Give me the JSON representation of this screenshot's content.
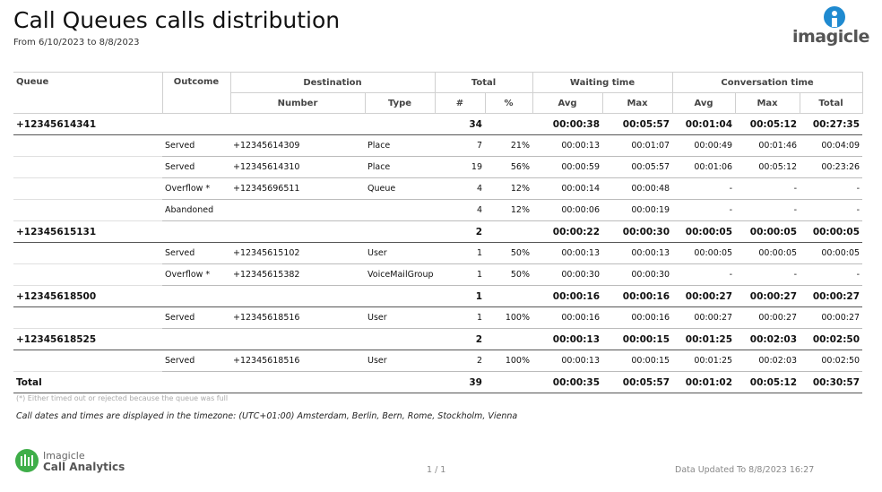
{
  "header": {
    "title": "Call Queues calls distribution",
    "subtitle": "From 6/10/2023 to 8/8/2023",
    "logo": "imagicle"
  },
  "table": {
    "group_headers": [
      "Queue",
      "Outcome",
      "Destination",
      "Total",
      "Waiting time",
      "Conversation time"
    ],
    "sub_headers": [
      "Number",
      "Type",
      "#",
      "%",
      "Avg",
      "Max",
      "Avg",
      "Max",
      "Total"
    ],
    "rows": [
      [
        "+12345614341",
        null,
        null,
        null,
        34,
        null,
        "00:00:38",
        "00:05:57",
        "00:01:04",
        "00:05:12",
        "00:27:35"
      ],
      [
        null,
        "Served",
        "+12345614309",
        "Place",
        7,
        "21%",
        "00:00:13",
        "00:01:07",
        "00:00:49",
        "00:01:46",
        "00:04:09"
      ],
      [
        null,
        "Served",
        "+12345614310",
        "Place",
        19,
        "56%",
        "00:00:59",
        "00:05:57",
        "00:01:06",
        "00:05:12",
        "00:23:26"
      ],
      [
        null,
        "Overflow *",
        "+12345696511",
        "Queue",
        4,
        "12%",
        "00:00:14",
        "00:00:48",
        "-",
        "-",
        "-"
      ],
      [
        null,
        "Abandoned",
        null,
        null,
        4,
        "12%",
        "00:00:06",
        "00:00:19",
        "-",
        "-",
        "-"
      ],
      [
        "+12345615131",
        null,
        null,
        null,
        2,
        null,
        "00:00:22",
        "00:00:30",
        "00:00:05",
        "00:00:05",
        "00:00:05"
      ],
      [
        null,
        "Served",
        "+12345615102",
        "User",
        1,
        "50%",
        "00:00:13",
        "00:00:13",
        "00:00:05",
        "00:00:05",
        "00:00:05"
      ],
      [
        null,
        "Overflow *",
        "+12345615382",
        "VoiceMailGroup",
        1,
        "50%",
        "00:00:30",
        "00:00:30",
        "-",
        "-",
        "-"
      ],
      [
        "+12345618500",
        null,
        null,
        null,
        1,
        null,
        "00:00:16",
        "00:00:16",
        "00:00:27",
        "00:00:27",
        "00:00:27"
      ],
      [
        null,
        "Served",
        "+12345618516",
        "User",
        1,
        "100%",
        "00:00:16",
        "00:00:16",
        "00:00:27",
        "00:00:27",
        "00:00:27"
      ],
      [
        "+12345618525",
        null,
        null,
        null,
        2,
        null,
        "00:00:13",
        "00:00:15",
        "00:01:25",
        "00:02:03",
        "00:02:50"
      ],
      [
        null,
        "Served",
        "+12345618516",
        "User",
        2,
        "100%",
        "00:00:13",
        "00:00:15",
        "00:01:25",
        "00:02:03",
        "00:02:50"
      ],
      [
        "Total",
        null,
        null,
        null,
        39,
        null,
        "00:00:35",
        "00:05:57",
        "00:01:02",
        "00:05:12",
        "00:30:57"
      ]
    ]
  },
  "footnote": "(*) Either timed out or rejected because the queue was full",
  "timezone_note": "Call dates and times are displayed in the timezone: (UTC+01:00) Amsterdam, Berlin, Bern, Rome, Stockholm, Vienna",
  "footer": {
    "brand_top": "Imagicle",
    "brand_bottom": "Call Analytics",
    "page": "1 / 1",
    "updated": "Data Updated To 8/8/2023 16:27"
  }
}
